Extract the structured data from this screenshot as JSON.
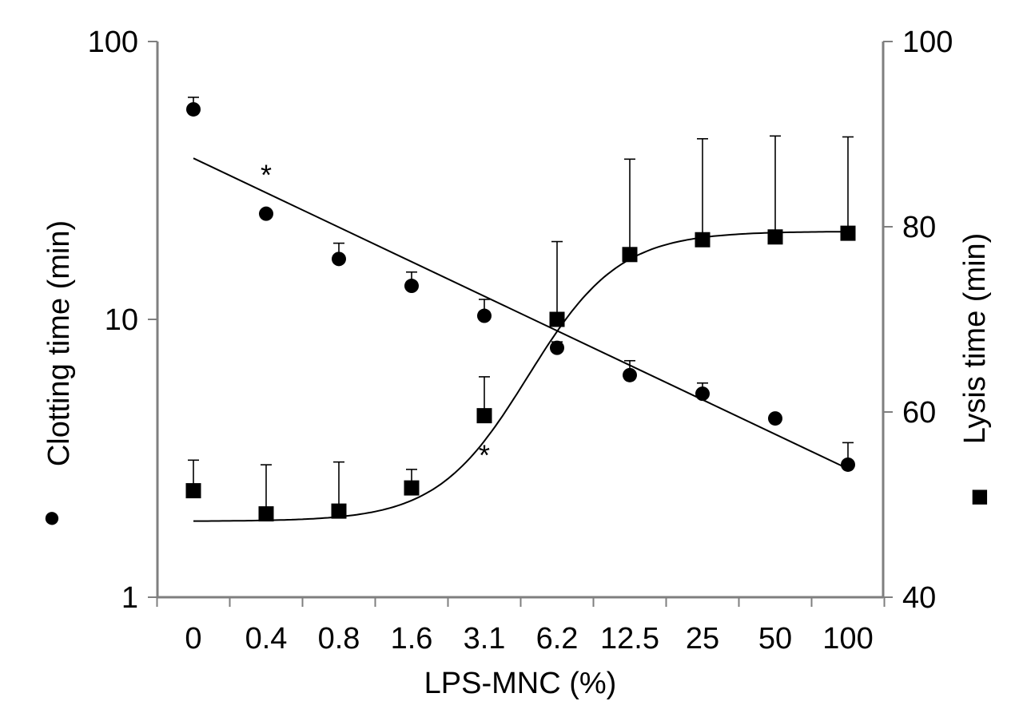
{
  "chart_data": {
    "type": "scatter",
    "categories": [
      "0",
      "0.4",
      "0.8",
      "1.6",
      "3.1",
      "6.2",
      "12.5",
      "25",
      "50",
      "100"
    ],
    "xlabel": "LPS-MNC (%)",
    "left_axis": {
      "label": "Clotting time (min)",
      "legend_symbol": "●",
      "scale": "log",
      "range": [
        1,
        100
      ],
      "ticks": [
        1,
        10,
        100
      ],
      "tick_labels": [
        "1",
        "10",
        "100"
      ]
    },
    "right_axis": {
      "label": "Lysis time (min)",
      "legend_symbol": "■",
      "scale": "linear",
      "range": [
        40,
        100
      ],
      "ticks": [
        40,
        60,
        80,
        100
      ],
      "tick_labels": [
        "40",
        "60",
        "80",
        "100"
      ]
    },
    "series": [
      {
        "name": "Clotting time",
        "axis": "left",
        "marker": "circle",
        "values": [
          57,
          24,
          16.5,
          13.2,
          10.3,
          7.9,
          6.3,
          5.4,
          4.4,
          3.0
        ],
        "error_upper": [
          63,
          null,
          18.8,
          14.8,
          11.8,
          8.3,
          7.1,
          5.9,
          null,
          3.6
        ],
        "trend": {
          "type": "log-linear",
          "start": 38,
          "end": 2.9
        }
      },
      {
        "name": "Lysis time",
        "axis": "right",
        "marker": "square",
        "values": [
          51.5,
          49,
          49.3,
          51.8,
          59.6,
          70.0,
          77.0,
          78.6,
          78.9,
          79.3
        ],
        "error_upper": [
          54.8,
          54.3,
          54.6,
          53.8,
          63.8,
          78.4,
          87.3,
          89.5,
          89.8,
          89.7
        ],
        "trend": {
          "type": "sigmoid",
          "bottom": 48.2,
          "top": 79.5,
          "mid_index": 4.6,
          "slope": 1.6
        }
      }
    ],
    "annotations": [
      {
        "text": "*",
        "series": "Clotting time",
        "index": 1
      },
      {
        "text": "*",
        "series": "Lysis time",
        "index": 4
      }
    ]
  }
}
